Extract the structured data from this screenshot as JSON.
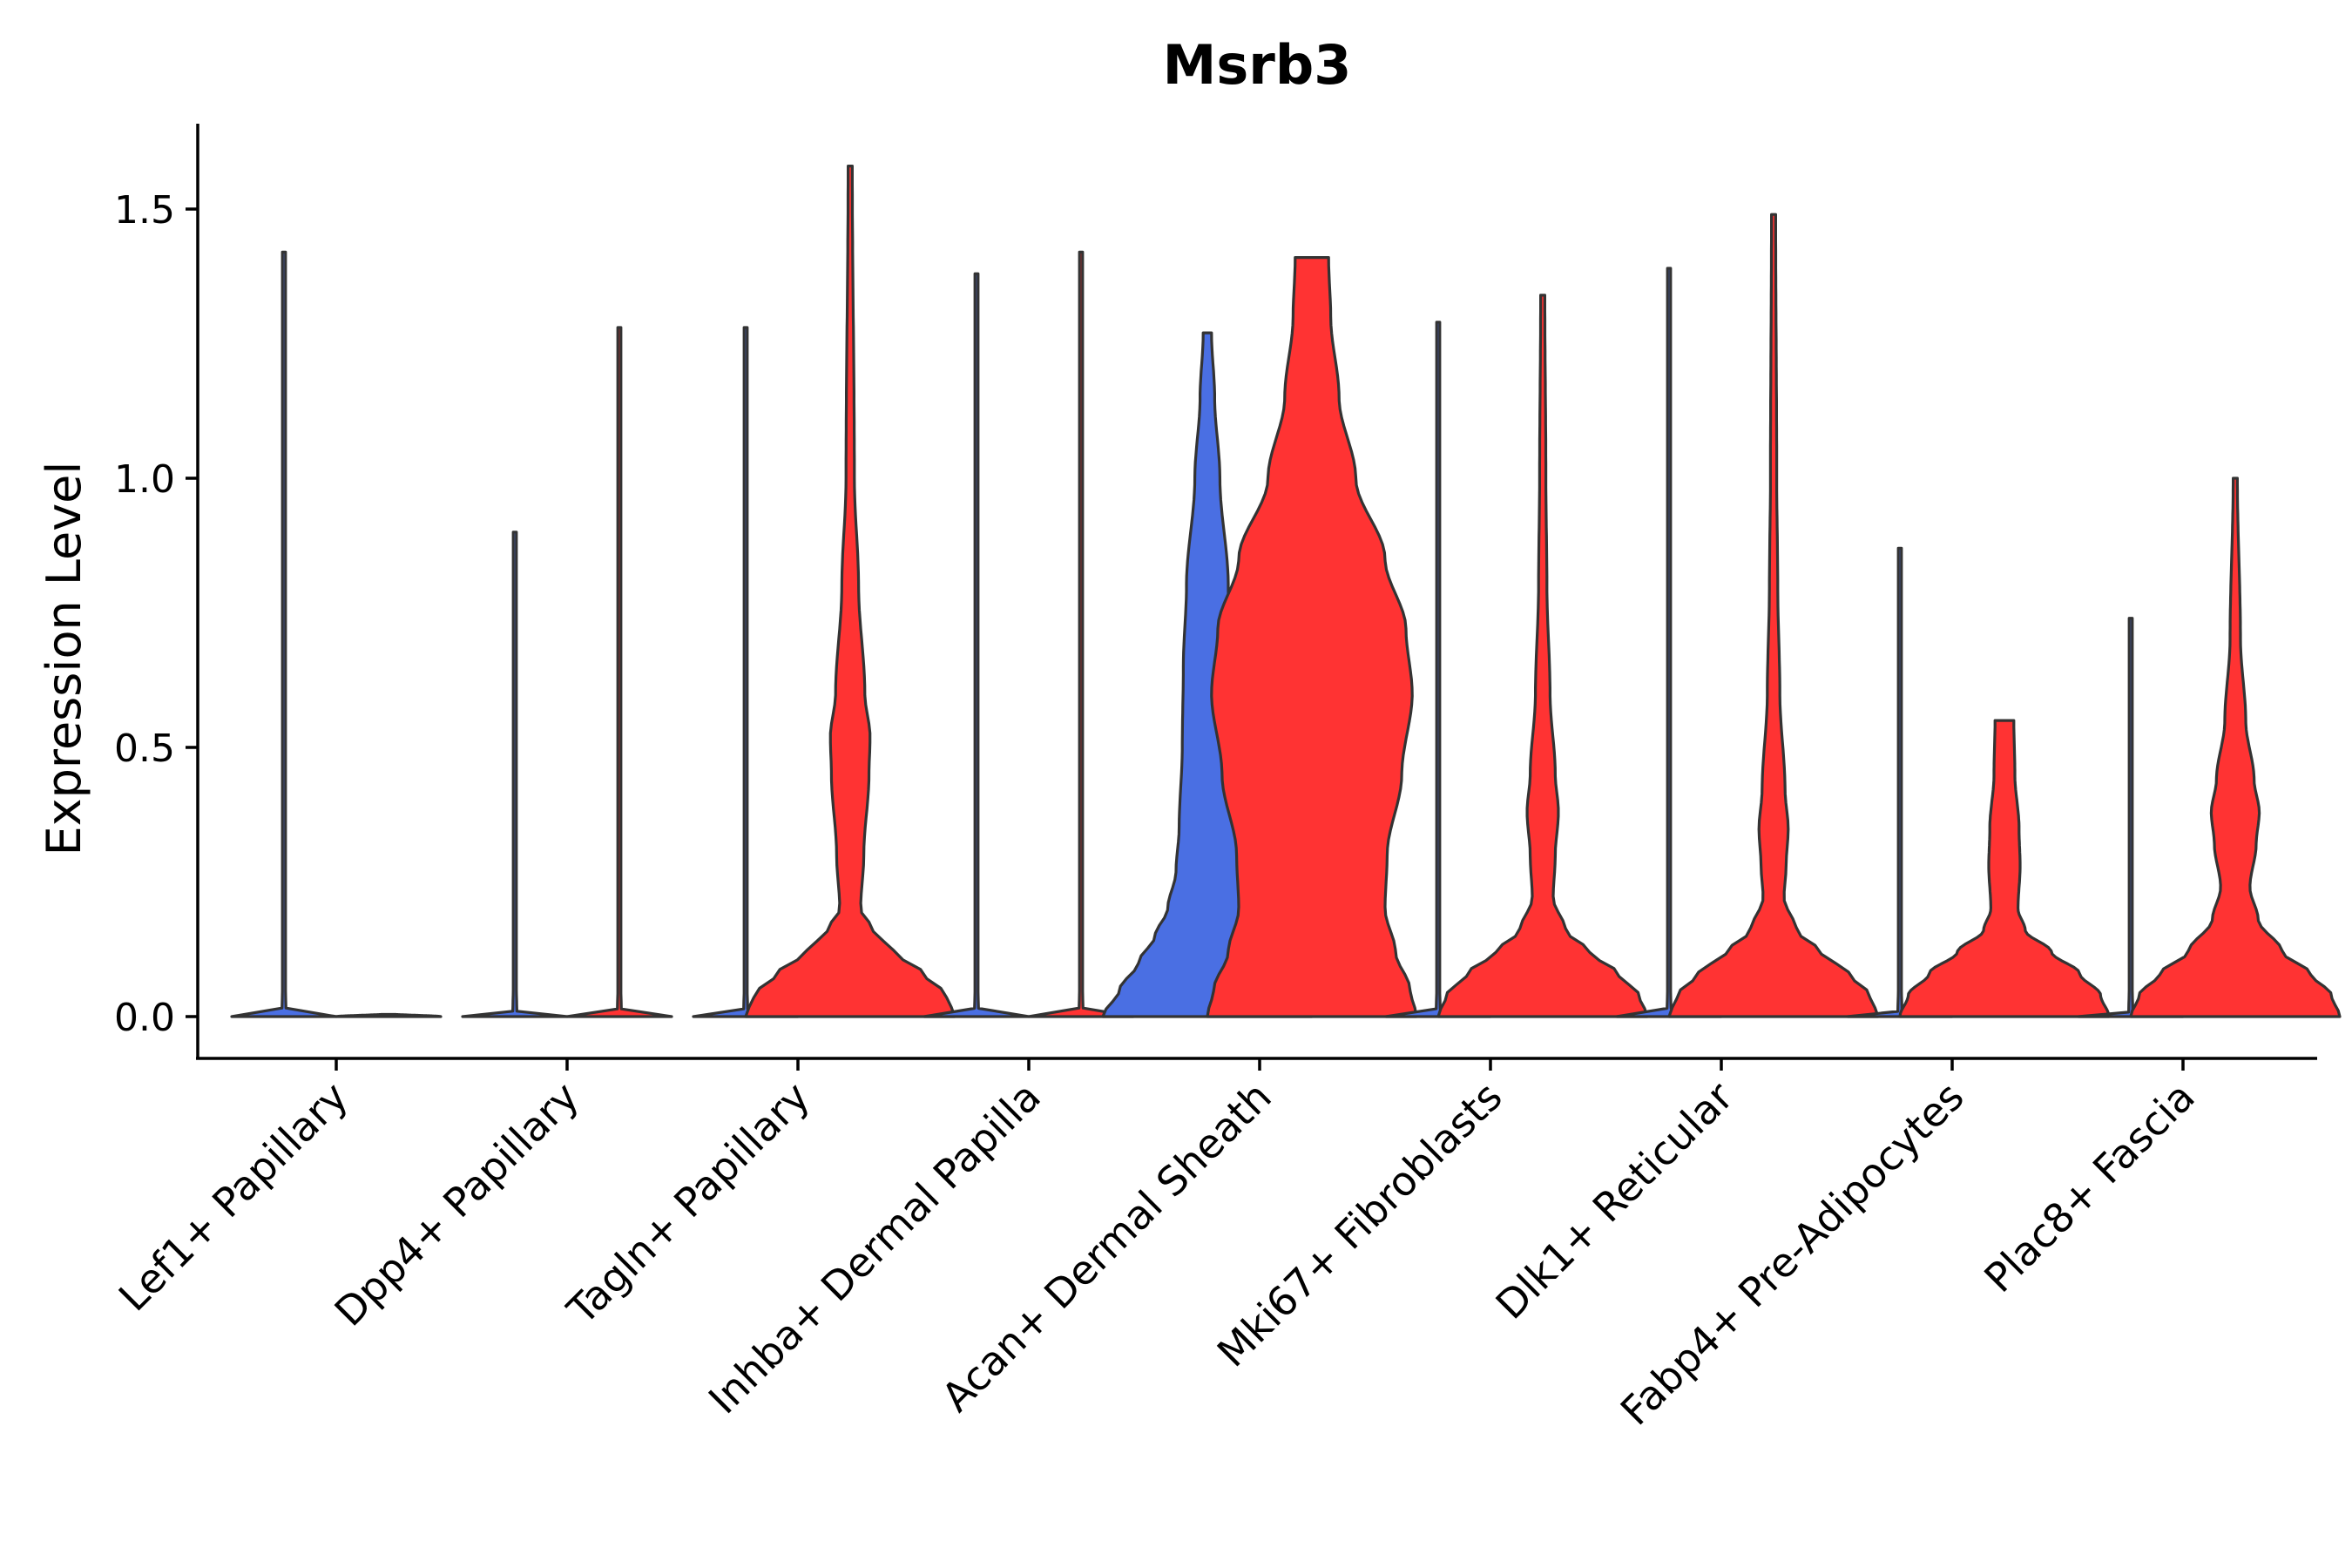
{
  "chart_data": {
    "type": "violin",
    "title": "Msrb3",
    "xlabel": "",
    "ylabel": "Expression Level",
    "ylim": [
      -0.08,
      1.66
    ],
    "yticks": [
      "0.0",
      "0.5",
      "1.0",
      "1.5"
    ],
    "ytick_values": [
      0.0,
      0.5,
      1.0,
      1.5
    ],
    "legend": "none",
    "grid": false,
    "series_colors": {
      "group1": "#4a6fe3",
      "group2": "#ff3333"
    },
    "categories": [
      "Lef1+ Papillary",
      "Dpp4+ Papillary",
      "Tagln+ Papillary",
      "Inhba+ Dermal Papilla",
      "Acan+ Dermal Sheath",
      "Mki67+ Fibroblasts",
      "Dlk1+ Reticular",
      "Fabp4+ Pre-Adipocytes",
      "Plac8+ Fascia"
    ],
    "violins": [
      {
        "category": "Lef1+ Papillary",
        "group": "group1",
        "max": 1.42,
        "density": [
          [
            0,
            0.5
          ],
          [
            0.005,
            0.02
          ],
          [
            0.05,
            0.015
          ],
          [
            1.42,
            0.015
          ]
        ]
      },
      {
        "category": "Lef1+ Papillary",
        "group": "group2",
        "max": 0.0,
        "density": [
          [
            0,
            0.5
          ],
          [
            0.005,
            0.02
          ],
          [
            0.01,
            0.0
          ]
        ]
      },
      {
        "category": "Dpp4+ Papillary",
        "group": "group1",
        "max": 0.9,
        "density": [
          [
            0,
            0.5
          ],
          [
            0.005,
            0.02
          ],
          [
            0.05,
            0.015
          ],
          [
            0.9,
            0.015
          ]
        ]
      },
      {
        "category": "Dpp4+ Papillary",
        "group": "group2",
        "max": 1.28,
        "density": [
          [
            0,
            0.5
          ],
          [
            0.005,
            0.02
          ],
          [
            0.05,
            0.015
          ],
          [
            1.28,
            0.015
          ]
        ]
      },
      {
        "category": "Tagln+ Papillary",
        "group": "group1",
        "max": 1.28,
        "density": [
          [
            0,
            0.5
          ],
          [
            0.005,
            0.02
          ],
          [
            0.05,
            0.015
          ],
          [
            1.28,
            0.015
          ]
        ]
      },
      {
        "category": "Tagln+ Papillary",
        "group": "group2",
        "max": 1.58,
        "density": [
          [
            0,
            1.0
          ],
          [
            0.04,
            0.92
          ],
          [
            0.08,
            0.7
          ],
          [
            0.12,
            0.42
          ],
          [
            0.16,
            0.22
          ],
          [
            0.2,
            0.1
          ],
          [
            0.3,
            0.13
          ],
          [
            0.45,
            0.18
          ],
          [
            0.52,
            0.19
          ],
          [
            0.6,
            0.14
          ],
          [
            0.8,
            0.08
          ],
          [
            1.0,
            0.04
          ],
          [
            1.58,
            0.02
          ]
        ]
      },
      {
        "category": "Inhba+ Dermal Papilla",
        "group": "group1",
        "max": 1.38,
        "density": [
          [
            0,
            0.5
          ],
          [
            0.005,
            0.02
          ],
          [
            0.05,
            0.015
          ],
          [
            1.38,
            0.015
          ]
        ]
      },
      {
        "category": "Inhba+ Dermal Papilla",
        "group": "group2",
        "max": 1.42,
        "density": [
          [
            0,
            0.5
          ],
          [
            0.005,
            0.02
          ],
          [
            0.05,
            0.015
          ],
          [
            1.42,
            0.015
          ]
        ]
      },
      {
        "category": "Acan+ Dermal Sheath",
        "group": "group1",
        "max": 1.27,
        "density": [
          [
            0,
            1.0
          ],
          [
            0.05,
            0.84
          ],
          [
            0.1,
            0.66
          ],
          [
            0.15,
            0.5
          ],
          [
            0.2,
            0.38
          ],
          [
            0.27,
            0.3
          ],
          [
            0.35,
            0.27
          ],
          [
            0.5,
            0.24
          ],
          [
            0.65,
            0.23
          ],
          [
            0.8,
            0.2
          ],
          [
            1.0,
            0.12
          ],
          [
            1.15,
            0.07
          ],
          [
            1.27,
            0.04
          ]
        ]
      },
      {
        "category": "Acan+ Dermal Sheath",
        "group": "group2",
        "max": 1.41,
        "density": [
          [
            0,
            1.0
          ],
          [
            0.05,
            0.94
          ],
          [
            0.12,
            0.8
          ],
          [
            0.2,
            0.7
          ],
          [
            0.3,
            0.72
          ],
          [
            0.45,
            0.86
          ],
          [
            0.6,
            0.96
          ],
          [
            0.72,
            0.9
          ],
          [
            0.85,
            0.7
          ],
          [
            1.0,
            0.42
          ],
          [
            1.15,
            0.26
          ],
          [
            1.3,
            0.18
          ],
          [
            1.41,
            0.16
          ]
        ]
      },
      {
        "category": "Mki67+ Fibroblasts",
        "group": "group1",
        "max": 1.29,
        "density": [
          [
            0,
            0.5
          ],
          [
            0.005,
            0.02
          ],
          [
            0.05,
            0.015
          ],
          [
            1.29,
            0.015
          ]
        ]
      },
      {
        "category": "Mki67+ Fibroblasts",
        "group": "group2",
        "max": 1.34,
        "density": [
          [
            0,
            1.0
          ],
          [
            0.04,
            0.92
          ],
          [
            0.08,
            0.72
          ],
          [
            0.12,
            0.45
          ],
          [
            0.16,
            0.22
          ],
          [
            0.22,
            0.1
          ],
          [
            0.3,
            0.12
          ],
          [
            0.38,
            0.15
          ],
          [
            0.45,
            0.12
          ],
          [
            0.6,
            0.07
          ],
          [
            0.8,
            0.04
          ],
          [
            1.0,
            0.03
          ],
          [
            1.34,
            0.02
          ]
        ]
      },
      {
        "category": "Dlk1+ Reticular",
        "group": "group1",
        "max": 1.39,
        "density": [
          [
            0,
            0.5
          ],
          [
            0.005,
            0.02
          ],
          [
            0.05,
            0.015
          ],
          [
            1.39,
            0.015
          ]
        ]
      },
      {
        "category": "Dlk1+ Reticular",
        "group": "group2",
        "max": 1.49,
        "density": [
          [
            0,
            1.0
          ],
          [
            0.04,
            0.92
          ],
          [
            0.08,
            0.72
          ],
          [
            0.12,
            0.45
          ],
          [
            0.16,
            0.22
          ],
          [
            0.22,
            0.1
          ],
          [
            0.28,
            0.12
          ],
          [
            0.35,
            0.14
          ],
          [
            0.42,
            0.11
          ],
          [
            0.6,
            0.06
          ],
          [
            0.8,
            0.04
          ],
          [
            1.0,
            0.03
          ],
          [
            1.49,
            0.02
          ]
        ]
      },
      {
        "category": "Fabp4+ Pre-Adipocytes",
        "group": "group1",
        "max": 0.87,
        "density": [
          [
            0,
            0.5
          ],
          [
            0.005,
            0.02
          ],
          [
            0.05,
            0.015
          ],
          [
            0.87,
            0.015
          ]
        ]
      },
      {
        "category": "Fabp4+ Pre-Adipocytes",
        "group": "group2",
        "max": 0.55,
        "density": [
          [
            0,
            1.0
          ],
          [
            0.04,
            0.92
          ],
          [
            0.08,
            0.72
          ],
          [
            0.12,
            0.45
          ],
          [
            0.16,
            0.2
          ],
          [
            0.2,
            0.13
          ],
          [
            0.28,
            0.15
          ],
          [
            0.35,
            0.14
          ],
          [
            0.45,
            0.1
          ],
          [
            0.55,
            0.09
          ]
        ]
      },
      {
        "category": "Plac8+ Fascia",
        "group": "group1",
        "max": 0.74,
        "density": [
          [
            0,
            0.5
          ],
          [
            0.005,
            0.02
          ],
          [
            0.05,
            0.015
          ],
          [
            0.74,
            0.015
          ]
        ]
      },
      {
        "category": "Plac8+ Fascia",
        "group": "group2",
        "max": 1.0,
        "density": [
          [
            0,
            1.0
          ],
          [
            0.04,
            0.92
          ],
          [
            0.08,
            0.72
          ],
          [
            0.12,
            0.45
          ],
          [
            0.18,
            0.22
          ],
          [
            0.24,
            0.14
          ],
          [
            0.32,
            0.2
          ],
          [
            0.38,
            0.23
          ],
          [
            0.44,
            0.18
          ],
          [
            0.55,
            0.1
          ],
          [
            0.7,
            0.05
          ],
          [
            1.0,
            0.02
          ]
        ]
      }
    ]
  }
}
